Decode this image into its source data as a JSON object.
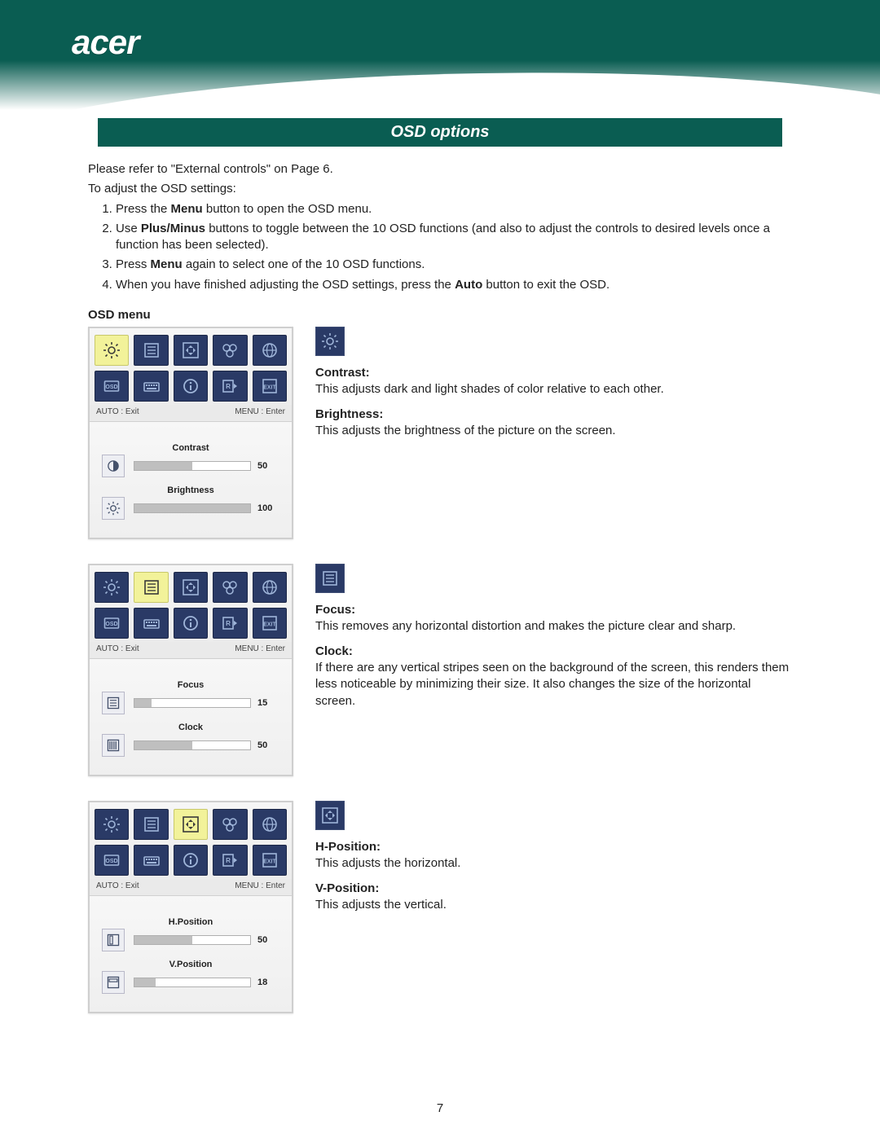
{
  "brand": {
    "logo_text": "acer"
  },
  "colors": {
    "brand": "#0a5d52",
    "osd_cell": "#2a3a66",
    "osd_cell_selected": "#f2f29a",
    "osd_icon": "#9fb5d9",
    "panel_bg_top": "#f6f6f6",
    "panel_bg_bottom": "#e9e9e9",
    "slider_fill": "#bfbfbf",
    "slider_border": "#b0b0b0",
    "text": "#222222"
  },
  "section_title": "OSD options",
  "intro": {
    "line1": "Please refer to \"External controls\" on Page 6.",
    "line2": "To adjust the OSD settings:"
  },
  "steps": [
    {
      "pre": "Press the ",
      "bold": "Menu",
      "post": " button to open the OSD menu."
    },
    {
      "pre": "Use ",
      "bold": "Plus/Minus",
      "post": " buttons to toggle between the 10 OSD functions (and also to adjust the controls to desired levels once a function has been selected)."
    },
    {
      "pre": "Press ",
      "bold": "Menu",
      "post": " again to select one of the 10 OSD functions."
    },
    {
      "pre": "When you have finished adjusting the OSD settings, press the ",
      "bold": "Auto",
      "post": " button to exit the OSD."
    }
  ],
  "osd_menu_heading": "OSD menu",
  "osd_common": {
    "left_hint": "AUTO : Exit",
    "right_hint": "MENU : Enter",
    "icons": [
      "brightness",
      "focus",
      "position",
      "color",
      "language",
      "osd",
      "keyboard",
      "info",
      "reset",
      "exit"
    ]
  },
  "panels": [
    {
      "selected_index": 0,
      "sliders": [
        {
          "icon": "contrast",
          "label": "Contrast",
          "value": 50,
          "max": 100
        },
        {
          "icon": "sun",
          "label": "Brightness",
          "value": 100,
          "max": 100
        }
      ],
      "callout_icon": "brightness",
      "items": [
        {
          "label": "Contrast:",
          "desc": "This adjusts dark and light shades of color relative to each other."
        },
        {
          "label": "Brightness:",
          "desc": "This adjusts the brightness of the picture on the screen."
        }
      ]
    },
    {
      "selected_index": 1,
      "sliders": [
        {
          "icon": "focus",
          "label": "Focus",
          "value": 15,
          "max": 100
        },
        {
          "icon": "clock",
          "label": "Clock",
          "value": 50,
          "max": 100
        }
      ],
      "callout_icon": "focus",
      "items": [
        {
          "label": "Focus:",
          "desc": "This removes any horizontal distortion and makes the picture clear and sharp."
        },
        {
          "label": "Clock:",
          "desc": "If there are any vertical stripes seen on the background of the screen, this renders them less noticeable by minimizing their size. It also changes the size of the horizontal screen."
        }
      ]
    },
    {
      "selected_index": 2,
      "sliders": [
        {
          "icon": "hpos",
          "label": "H.Position",
          "value": 50,
          "max": 100
        },
        {
          "icon": "vpos",
          "label": "V.Position",
          "value": 18,
          "max": 100
        }
      ],
      "callout_icon": "position",
      "items": [
        {
          "label": "H-Position:",
          "desc": "This adjusts the horizontal."
        },
        {
          "label": "V-Position:",
          "desc": "This adjusts the vertical."
        }
      ]
    }
  ],
  "page_number": "7"
}
